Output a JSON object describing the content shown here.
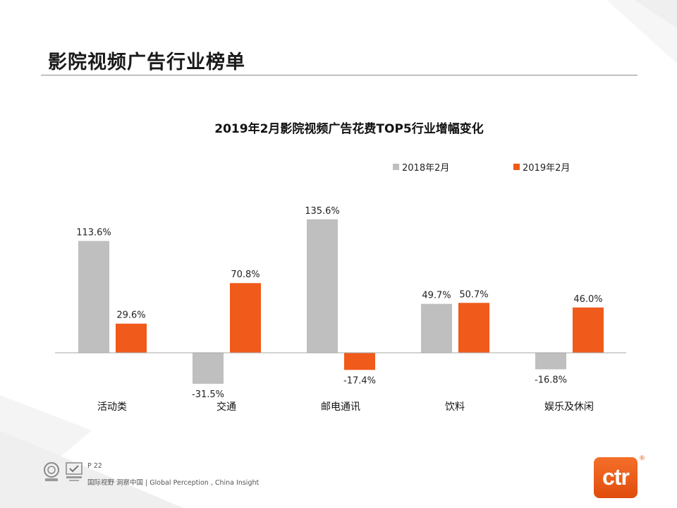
{
  "page": {
    "title": "影院视频广告行业榜单"
  },
  "chart_data": {
    "type": "bar",
    "title": "2019年2月影院视频广告花费TOP5行业增幅变化",
    "categories": [
      "活动类",
      "交通",
      "邮电通讯",
      "饮料",
      "娱乐及休闲"
    ],
    "series": [
      {
        "name": "2018年2月",
        "values": [
          113.6,
          -31.5,
          135.6,
          49.7,
          -16.8
        ],
        "color": "#bfbfbf",
        "labels": [
          "113.6%",
          "-31.5%",
          "135.6%",
          "49.7%",
          "-16.8%"
        ]
      },
      {
        "name": "2019年2月",
        "values": [
          29.6,
          70.8,
          -17.4,
          50.7,
          46.0
        ],
        "color": "#f05a1a",
        "labels": [
          "29.6%",
          "70.8%",
          "-17.4%",
          "50.7%",
          "46.0%"
        ]
      }
    ],
    "legend_position": "top-right",
    "grid": false
  },
  "footer": {
    "page_number": "P 22",
    "tagline": "国际视野 洞察中国 | Global Perception , China Insight"
  },
  "brand": {
    "logo_text": "ctr",
    "registered": "®",
    "accent_color": "#f05a1a"
  }
}
